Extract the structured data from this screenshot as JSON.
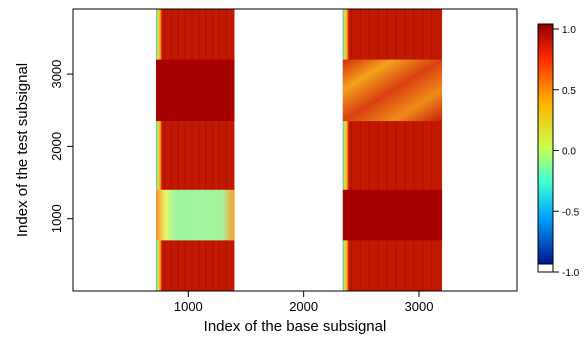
{
  "chart_data": {
    "type": "heatmap",
    "title": "",
    "xlabel": "Index of the base subsignal",
    "ylabel": "Index of the test subsignal",
    "xlim": [
      0,
      3850
    ],
    "ylim": [
      0,
      3900
    ],
    "x_ticks": [
      1000,
      2000,
      3000
    ],
    "y_ticks": [
      1000,
      2000,
      3000
    ],
    "x_tick_labels": [
      "1000",
      "2000",
      "3000"
    ],
    "y_tick_labels": [
      "1000",
      "2000",
      "3000"
    ],
    "colorbar": {
      "range": [
        -1.0,
        1.0
      ],
      "ticks": [
        1.0,
        0.5,
        0.0,
        -0.5,
        -1.0
      ],
      "tick_labels": [
        "1.0",
        "0.5",
        "0.0",
        "-0.5",
        "-1.0"
      ]
    },
    "regions": [
      {
        "x": [
          720,
          1400
        ],
        "y": [
          0,
          3900
        ],
        "value": 0.92
      },
      {
        "x": [
          2340,
          3200
        ],
        "y": [
          0,
          3900
        ],
        "value": 0.97
      },
      {
        "x": [
          720,
          1400
        ],
        "y": [
          2350,
          3200
        ],
        "value": 1.0
      },
      {
        "x": [
          720,
          1400
        ],
        "y": [
          700,
          1400
        ],
        "value": 0.25
      },
      {
        "x": [
          2340,
          3200
        ],
        "y": [
          2350,
          3200
        ],
        "value": 0.75
      },
      {
        "x": [
          2340,
          3200
        ],
        "y": [
          700,
          1400
        ],
        "value": 1.0
      }
    ],
    "grid": false
  },
  "colors": {
    "band_edge_low": "#3fd3c4",
    "band_edge_mid": "#e7e53b",
    "band_main": "#c11a00",
    "band_main_alt": "#a90a00",
    "block_dark": "#a60000",
    "block_light": "#9ff59f",
    "block_mix_orange": "#f39c1f",
    "block_mix_red": "#d73a12"
  }
}
